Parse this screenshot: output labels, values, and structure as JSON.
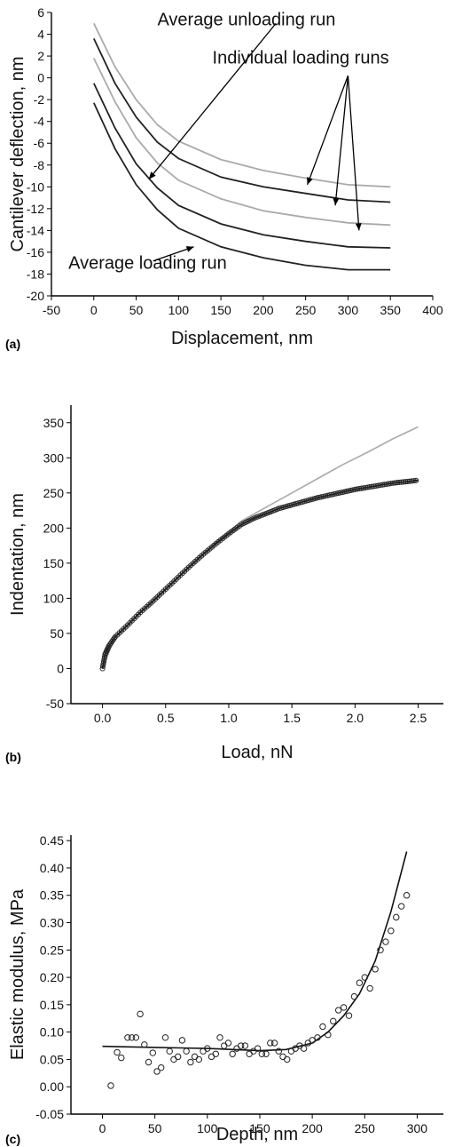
{
  "chart_data": [
    {
      "panel_label": "(a)",
      "type": "line",
      "xlabel": "Displacement, nm",
      "ylabel": "Cantilever deflection, nm",
      "xlim": [
        -50,
        400
      ],
      "ylim": [
        -20,
        6
      ],
      "xticks": [
        -50,
        0,
        50,
        100,
        150,
        200,
        250,
        300,
        350,
        400
      ],
      "yticks": [
        -20,
        -18,
        -16,
        -14,
        -12,
        -10,
        -8,
        -6,
        -4,
        -2,
        0,
        2,
        4,
        6
      ],
      "grid": false,
      "series": [
        {
          "color": "#aaaaaa",
          "x": [
            0,
            25,
            50,
            75,
            100,
            150,
            200,
            250,
            300,
            350
          ],
          "values": [
            5.0,
            1.0,
            -2.0,
            -4.3,
            -5.8,
            -7.5,
            -8.5,
            -9.2,
            -9.8,
            -10.0
          ]
        },
        {
          "color": "#222222",
          "x": [
            0,
            25,
            50,
            75,
            100,
            150,
            200,
            250,
            300,
            350
          ],
          "values": [
            3.6,
            -0.5,
            -3.6,
            -5.9,
            -7.4,
            -9.1,
            -10.0,
            -10.6,
            -11.2,
            -11.4
          ]
        },
        {
          "color": "#aaaaaa",
          "x": [
            0,
            25,
            50,
            75,
            100,
            150,
            200,
            250,
            300,
            350
          ],
          "values": [
            1.8,
            -2.2,
            -5.5,
            -7.8,
            -9.4,
            -11.1,
            -12.2,
            -12.8,
            -13.3,
            -13.5
          ]
        },
        {
          "color": "#222222",
          "x": [
            0,
            25,
            50,
            75,
            100,
            150,
            200,
            250,
            300,
            350
          ],
          "values": [
            -0.5,
            -4.6,
            -7.9,
            -10.1,
            -11.7,
            -13.4,
            -14.4,
            -15.0,
            -15.5,
            -15.6
          ]
        },
        {
          "color": "#222222",
          "x": [
            0,
            25,
            50,
            75,
            100,
            150,
            200,
            250,
            300,
            350
          ],
          "values": [
            -2.3,
            -6.5,
            -9.8,
            -12.1,
            -13.8,
            -15.5,
            -16.5,
            -17.2,
            -17.6,
            -17.6
          ]
        }
      ],
      "annotations": [
        {
          "text": "Average unloading run",
          "x": 75,
          "y": 4.8,
          "arrows": [
            [
              215,
              5.0,
              65,
              -9.3
            ]
          ]
        },
        {
          "text": "Individual loading runs",
          "x": 140,
          "y": 1.3,
          "arrows": [
            [
              300,
              0.2,
              252,
              -9.8
            ],
            [
              300,
              0.2,
              285,
              -11.7
            ],
            [
              300,
              0.2,
              313,
              -14.0
            ]
          ]
        },
        {
          "text": "Average loading run",
          "x": -30,
          "y": -17.5,
          "arrows": [
            [
              70,
              -16.8,
              118,
              -15.5
            ]
          ]
        }
      ]
    },
    {
      "panel_label": "(b)",
      "type": "scatter",
      "xlabel": "Load, nN",
      "ylabel": "Indentation, nm",
      "xlim": [
        -0.25,
        2.7
      ],
      "ylim": [
        -50,
        375
      ],
      "xticks": [
        0.0,
        0.5,
        1.0,
        1.5,
        2.0,
        2.5
      ],
      "xticklabels": [
        "0.0",
        "0.5",
        "1.0",
        "1.5",
        "2.0",
        "2.5"
      ],
      "yticks": [
        -50,
        0,
        50,
        100,
        150,
        200,
        250,
        300,
        350
      ],
      "grid": false,
      "fit_line": {
        "color": "#aaaaaa",
        "x": [
          0.0,
          0.1,
          0.3,
          0.5,
          0.7,
          0.9,
          1.1,
          1.3,
          1.5,
          1.7,
          1.9,
          2.1,
          2.3,
          2.5
        ],
        "values": [
          0,
          45,
          80,
          113,
          147,
          180,
          210,
          230,
          250,
          270,
          290,
          308,
          327,
          344
        ]
      },
      "data_curve": {
        "color": "#222222",
        "x": [
          0.0,
          0.02,
          0.05,
          0.1,
          0.2,
          0.3,
          0.4,
          0.5,
          0.6,
          0.7,
          0.8,
          0.9,
          1.0,
          1.1,
          1.2,
          1.3,
          1.4,
          1.5,
          1.6,
          1.7,
          1.8,
          1.9,
          2.0,
          2.1,
          2.2,
          2.3,
          2.4,
          2.5
        ],
        "values": [
          0,
          20,
          32,
          45,
          62,
          80,
          96,
          113,
          130,
          147,
          163,
          178,
          192,
          205,
          214,
          221,
          228,
          233,
          238,
          243,
          247,
          251,
          255,
          258,
          261,
          264,
          266,
          268
        ]
      }
    },
    {
      "panel_label": "(c)",
      "type": "scatter",
      "xlabel": "Depth, nm",
      "ylabel": "Elastic modulus, MPa",
      "xlim": [
        -30,
        325
      ],
      "ylim": [
        -0.05,
        0.46
      ],
      "xticks": [
        0,
        50,
        100,
        150,
        200,
        250,
        300
      ],
      "yticks": [
        -0.05,
        0.0,
        0.05,
        0.1,
        0.15,
        0.2,
        0.25,
        0.3,
        0.35,
        0.4,
        0.45
      ],
      "yticklabels": [
        "-0.05",
        "0.00",
        "0.05",
        "0.10",
        "0.15",
        "0.20",
        "0.25",
        "0.30",
        "0.35",
        "0.40",
        "0.45"
      ],
      "grid": false,
      "fit_line": {
        "color": "#111111",
        "x": [
          0,
          25,
          50,
          75,
          100,
          125,
          150,
          175,
          200,
          215,
          230,
          245,
          260,
          275,
          290
        ],
        "values": [
          0.074,
          0.073,
          0.072,
          0.071,
          0.07,
          0.068,
          0.066,
          0.068,
          0.08,
          0.1,
          0.13,
          0.17,
          0.23,
          0.32,
          0.43
        ]
      },
      "points": {
        "x": [
          8,
          14,
          18,
          24,
          28,
          32,
          36,
          40,
          44,
          48,
          52,
          56,
          60,
          64,
          68,
          72,
          76,
          80,
          84,
          88,
          92,
          96,
          100,
          104,
          108,
          112,
          116,
          120,
          124,
          128,
          132,
          136,
          140,
          144,
          148,
          152,
          156,
          160,
          164,
          168,
          172,
          176,
          180,
          184,
          188,
          192,
          196,
          200,
          205,
          210,
          215,
          220,
          225,
          230,
          235,
          240,
          245,
          250,
          255,
          260,
          265,
          270,
          275,
          280,
          285,
          290
        ],
        "values": [
          0.002,
          0.063,
          0.053,
          0.09,
          0.09,
          0.09,
          0.133,
          0.077,
          0.045,
          0.062,
          0.028,
          0.035,
          0.09,
          0.065,
          0.05,
          0.055,
          0.085,
          0.065,
          0.045,
          0.055,
          0.05,
          0.065,
          0.07,
          0.055,
          0.06,
          0.09,
          0.075,
          0.08,
          0.06,
          0.07,
          0.075,
          0.075,
          0.06,
          0.065,
          0.07,
          0.06,
          0.06,
          0.08,
          0.08,
          0.065,
          0.055,
          0.05,
          0.065,
          0.07,
          0.075,
          0.07,
          0.08,
          0.085,
          0.09,
          0.11,
          0.095,
          0.12,
          0.14,
          0.145,
          0.13,
          0.165,
          0.19,
          0.2,
          0.18,
          0.215,
          0.25,
          0.265,
          0.285,
          0.31,
          0.33,
          0.35
        ]
      }
    }
  ]
}
